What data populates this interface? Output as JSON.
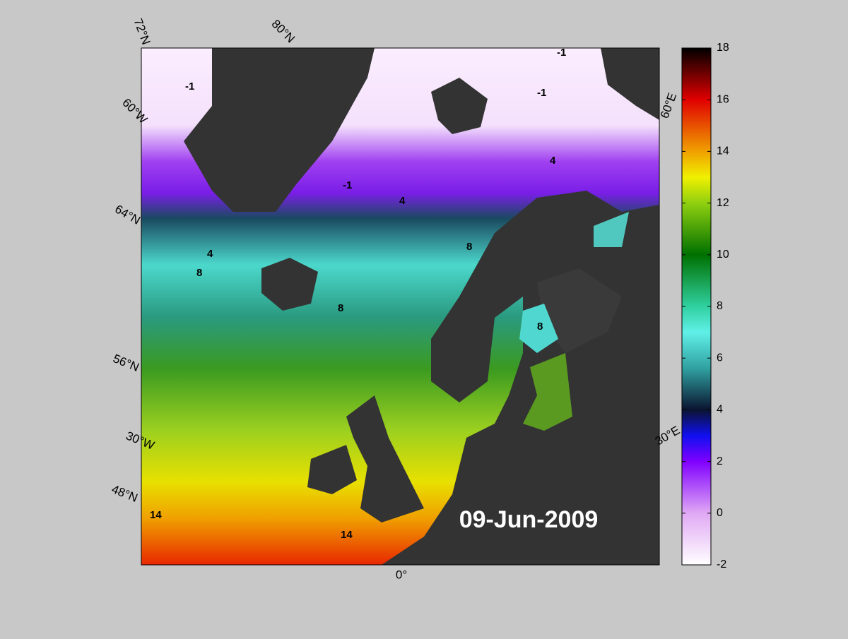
{
  "map": {
    "date": "09-Jun-2009",
    "graticule_labels": {
      "lat72": "72°N",
      "lat80": "80°N",
      "lat64": "64°N",
      "lat56": "56°N",
      "lat48": "48°N",
      "lon60w": "60°W",
      "lon30w": "30°W",
      "lon0": "0°",
      "lon30e": "30°E",
      "lon60e": "60°E"
    },
    "contour_labels": {
      "minus1": "-1",
      "four": "4",
      "eight": "8",
      "fourteen": "14"
    }
  },
  "colorbar": {
    "lim": [
      -2,
      18
    ],
    "ticks": [
      -2,
      0,
      2,
      4,
      6,
      8,
      10,
      12,
      14,
      16,
      18
    ]
  }
}
